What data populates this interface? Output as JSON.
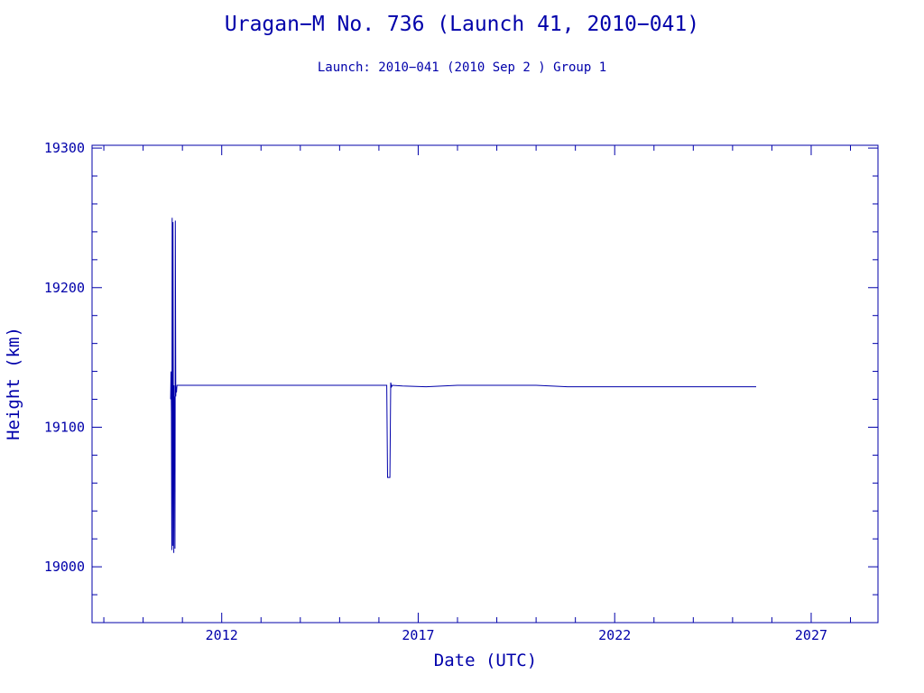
{
  "chart_data": {
    "type": "line",
    "title": "Uragan−M No. 736 (Launch 41, 2010−041)",
    "subtitle": "Launch: 2010−041  (2010 Sep  2 )  Group 1",
    "xlabel": "Date (UTC)",
    "ylabel": "Height (km)",
    "xlim": [
      2008.7,
      2028.7
    ],
    "ylim": [
      18960,
      19302
    ],
    "x_ticks": [
      2012,
      2017,
      2022,
      2027
    ],
    "x_tick_labels": [
      "2012",
      "2017",
      "2022",
      "2027"
    ],
    "y_ticks": [
      19000,
      19100,
      19200,
      19300
    ],
    "y_tick_labels": [
      "19000",
      "19100",
      "19200",
      "19300"
    ],
    "grid": false,
    "color": "#0000aa",
    "series": [
      {
        "x": [
          2010.7,
          2010.71,
          2010.72,
          2010.73,
          2010.74,
          2010.745,
          2010.75,
          2010.76,
          2010.77,
          2010.78,
          2010.785,
          2010.79,
          2010.8,
          2010.81,
          2010.815,
          2010.82,
          2010.83,
          2010.84,
          2010.85,
          2010.86,
          2010.88,
          2010.9,
          2016.2,
          2016.22,
          2016.24,
          2016.26,
          2016.28,
          2016.3,
          2016.32,
          2016.34,
          2016.6,
          2017.2,
          2018.0,
          2019.0,
          2020.0,
          2020.8,
          2022.0,
          2024.0,
          2025.6
        ],
        "y": [
          19120,
          19140,
          19110,
          19012,
          19250,
          19100,
          19015,
          19247,
          19120,
          19010,
          19130,
          19100,
          19122,
          19013,
          19105,
          19248,
          19122,
          19129,
          19125,
          19130,
          19130,
          19130,
          19130,
          19064,
          19064,
          19064,
          19064,
          19132,
          19129,
          19130,
          19129.5,
          19129,
          19130,
          19130,
          19130,
          19129,
          19129,
          19129,
          19129
        ]
      }
    ]
  }
}
